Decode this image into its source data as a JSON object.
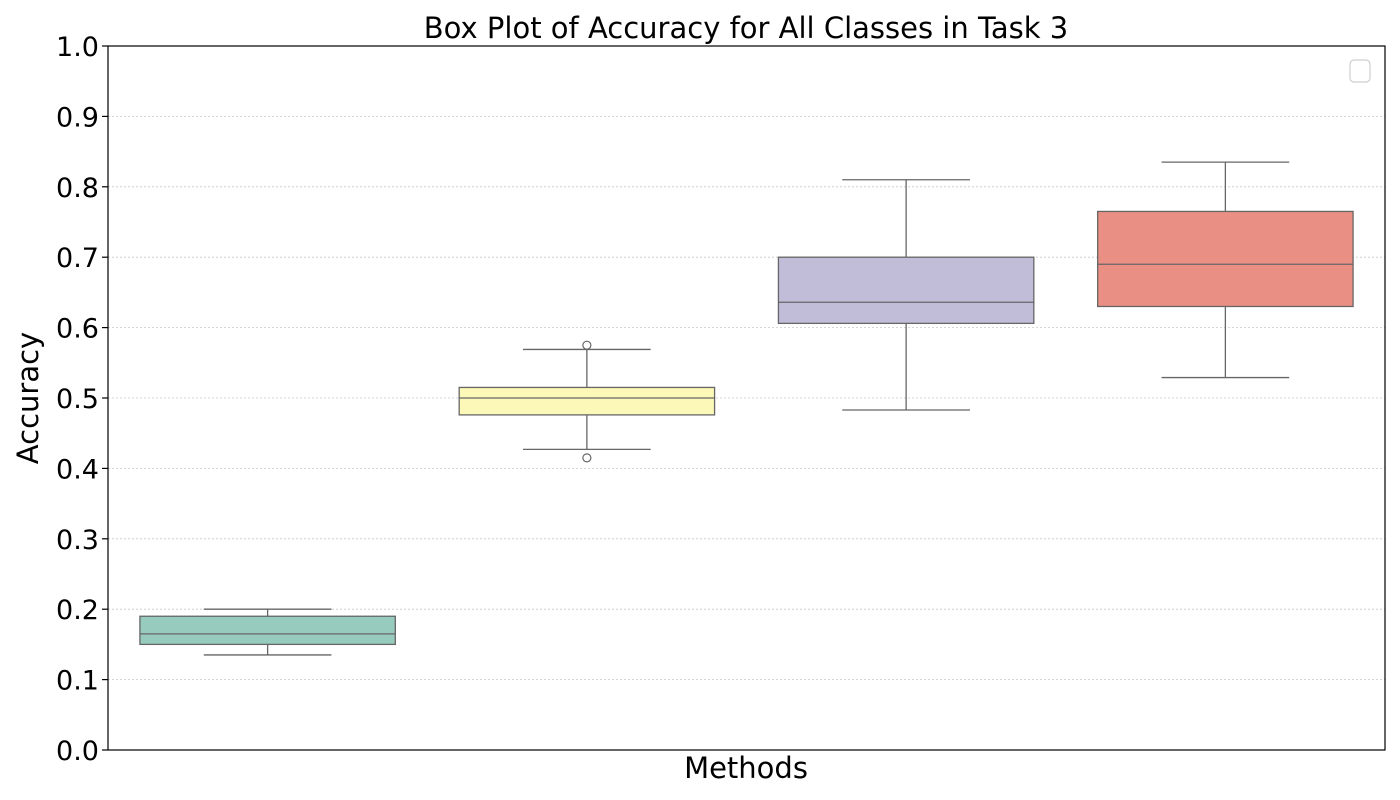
{
  "chart_data": {
    "type": "box",
    "title": "Box Plot of Accuracy for All Classes in Task 3",
    "xlabel": "Methods",
    "ylabel": "Accuracy",
    "ylim": [
      0.0,
      1.0
    ],
    "yticks": [
      "0.0",
      "0.1",
      "0.2",
      "0.3",
      "0.4",
      "0.5",
      "0.6",
      "0.7",
      "0.8",
      "0.9",
      "1.0"
    ],
    "grid": "y-dotted",
    "legend": {
      "placement": "upper-right",
      "entries": []
    },
    "boxes": [
      {
        "whisker_low": 0.135,
        "q1": 0.15,
        "median": 0.165,
        "q3": 0.19,
        "whisker_high": 0.2,
        "outliers": [],
        "color": "#96cbbd"
      },
      {
        "whisker_low": 0.427,
        "q1": 0.476,
        "median": 0.5,
        "q3": 0.515,
        "whisker_high": 0.569,
        "outliers": [
          0.575,
          0.415
        ],
        "color": "#fbf8b8"
      },
      {
        "whisker_low": 0.483,
        "q1": 0.606,
        "median": 0.636,
        "q3": 0.7,
        "whisker_high": 0.81,
        "outliers": [],
        "color": "#c1bdd8"
      },
      {
        "whisker_low": 0.529,
        "q1": 0.63,
        "median": 0.69,
        "q3": 0.765,
        "whisker_high": 0.835,
        "outliers": [],
        "color": "#ea8f84"
      }
    ]
  }
}
